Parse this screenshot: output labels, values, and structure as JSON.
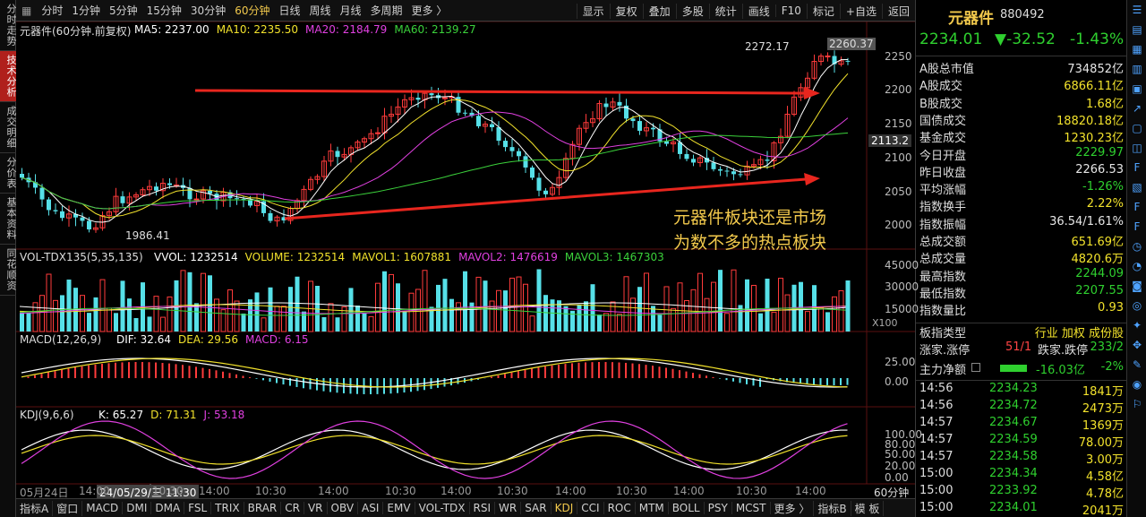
{
  "left_tabs": [
    "分时走势",
    "技术分析",
    "成交明细",
    "分价表",
    "基本资料",
    "同花顺资"
  ],
  "toolbar": {
    "periods": [
      "分时",
      "1分钟",
      "5分钟",
      "15分钟",
      "30分钟",
      "60分钟",
      "日线",
      "周线",
      "月线",
      "多周期",
      "更多 〉"
    ],
    "selected_period": "60分钟",
    "actions": [
      "显示",
      "复权",
      "叠加",
      "多股",
      "统计",
      "画线",
      "F10",
      "标记",
      "+自选",
      "返回"
    ]
  },
  "main_chart": {
    "name": "元器件(60分钟.前复权)",
    "ma": [
      {
        "label": "MA5: 2237.00",
        "color": "#ffffff"
      },
      {
        "label": "MA10: 2235.50",
        "color": "#f2e22c"
      },
      {
        "label": "MA20: 2184.79",
        "color": "#e040e0"
      },
      {
        "label": "MA60: 2139.27",
        "color": "#3bd13b"
      }
    ],
    "y_ticks": [
      "2250",
      "2200",
      "2150",
      "2100",
      "2050",
      "2000"
    ],
    "current_price_tag": "2113.2",
    "high_label": "2272.17",
    "high2_label": "2260.37",
    "low_label": "1986.41",
    "annotation_line1": "元器件板块还是市场",
    "annotation_line2": "为数不多的热点板块"
  },
  "volume_panel": {
    "name": "VOL-TDX135(5,35,135)",
    "items": [
      {
        "label": "VVOL: 1232514",
        "color": "#ffffff"
      },
      {
        "label": "VOLUME: 1232514",
        "color": "#f2e22c"
      },
      {
        "label": "MAVOL1: 1607881",
        "color": "#f2e22c"
      },
      {
        "label": "MAVOL2: 1476619",
        "color": "#e040e0"
      },
      {
        "label": "MAVOL3: 1467303",
        "color": "#3bd13b"
      }
    ],
    "y_ticks": [
      "45000",
      "30000",
      "15000"
    ],
    "unit": "X100"
  },
  "macd_panel": {
    "name": "MACD(12,26,9)",
    "items": [
      {
        "label": "DIF: 32.64",
        "color": "#ffffff"
      },
      {
        "label": "DEA: 29.56",
        "color": "#f2e22c"
      },
      {
        "label": "MACD: 6.15",
        "color": "#e040e0"
      }
    ],
    "y_ticks": [
      "25.00",
      "0.00"
    ]
  },
  "kdj_panel": {
    "name": "KDJ(9,6,6)",
    "items": [
      {
        "label": "K: 65.27",
        "color": "#ffffff"
      },
      {
        "label": "D: 71.31",
        "color": "#f2e22c"
      },
      {
        "label": "J: 53.18",
        "color": "#e040e0"
      }
    ],
    "y_ticks": [
      "100.00",
      "80.00",
      "50.00",
      "20.00",
      "0.00"
    ]
  },
  "time_axis": {
    "labels": [
      "05月24日",
      "14:00",
      "10:30",
      "14:00",
      "10:30",
      "14:00",
      "10:30",
      "14:00",
      "10:30",
      "14:00",
      "10:30",
      "14:00",
      "10:30",
      "14:00"
    ],
    "cursor_label": "24/05/29/三 11:30",
    "period_label": "60分钟"
  },
  "bottom_tabs": [
    "指标A",
    "窗口",
    "MACD",
    "DMI",
    "DMA",
    "FSL",
    "TRIX",
    "BRAR",
    "CR",
    "VR",
    "OBV",
    "ASI",
    "EMV",
    "VOL-TDX",
    "RSI",
    "WR",
    "SAR",
    "KDJ",
    "CCI",
    "ROC",
    "MTM",
    "BOLL",
    "PSY",
    "MCST",
    "更多 〉",
    "指标B",
    "模 板"
  ],
  "selected_bottom_tab": "KDJ",
  "quote": {
    "name": "元器件",
    "code": "880492",
    "price": "2234.01",
    "change": "▼-32.52",
    "pct": "-1.43%"
  },
  "stats": [
    {
      "k": "A股总市值",
      "v": "734852亿",
      "c": "#e6e6e6"
    },
    {
      "k": "A股成交",
      "v": "6866.11亿",
      "c": "#f2e22c"
    },
    {
      "k": "B股成交",
      "v": "1.68亿",
      "c": "#f2e22c"
    },
    {
      "k": "国债成交",
      "v": "18820.18亿",
      "c": "#f2e22c"
    },
    {
      "k": "基金成交",
      "v": "1230.23亿",
      "c": "#f2e22c"
    },
    {
      "k": "今日开盘",
      "v": "2229.97",
      "c": "#2fd02f"
    },
    {
      "k": "昨日收盘",
      "v": "2266.53",
      "c": "#e6e6e6"
    },
    {
      "k": "平均涨幅",
      "v": "-1.26%",
      "c": "#2fd02f"
    },
    {
      "k": "指数换手",
      "v": "2.22%",
      "c": "#f2e22c"
    },
    {
      "k": "指数振幅",
      "v": "36.54/1.61%",
      "c": "#e6e6e6"
    },
    {
      "k": "总成交额",
      "v": "651.69亿",
      "c": "#f2e22c"
    },
    {
      "k": "总成交量",
      "v": "4820.6万",
      "c": "#f2e22c"
    },
    {
      "k": "最高指数",
      "v": "2244.09",
      "c": "#2fd02f"
    },
    {
      "k": "最低指数",
      "v": "2207.55",
      "c": "#2fd02f"
    },
    {
      "k": "指数量比",
      "v": "0.93",
      "c": "#f2e22c"
    }
  ],
  "sector_type": {
    "k": "板指类型",
    "v": "行业 加权 成份股"
  },
  "limits": {
    "k1": "涨家.涨停",
    "v1": "51/1",
    "k2": "跌家.跌停",
    "v2": "233/2"
  },
  "net_flow": {
    "k": "主力净额",
    "v": "-16.03亿",
    "pct": "-2%"
  },
  "ticks": [
    {
      "t": "14:56",
      "p": "2234.23",
      "vol": "1841万"
    },
    {
      "t": "14:56",
      "p": "2234.72",
      "vol": "2473万"
    },
    {
      "t": "14:57",
      "p": "2234.67",
      "vol": "1369万"
    },
    {
      "t": "14:57",
      "p": "2234.59",
      "vol": "78.00万"
    },
    {
      "t": "14:57",
      "p": "2234.58",
      "vol": "3.00万"
    },
    {
      "t": "15:00",
      "p": "2234.34",
      "vol": "4.58亿"
    },
    {
      "t": "15:00",
      "p": "2233.92",
      "vol": "4.78亿"
    },
    {
      "t": "15:00",
      "p": "2234.01",
      "vol": "2041万"
    }
  ]
}
